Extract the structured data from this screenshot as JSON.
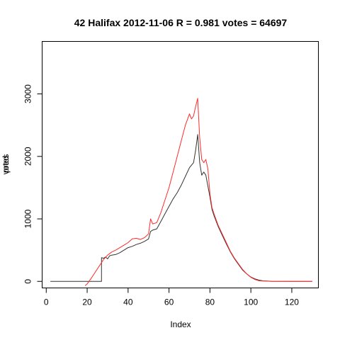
{
  "chart_data": {
    "type": "line",
    "title": "42 Halifax 2012-11-06 R = 0.981 votes = 64697",
    "xlabel": "Index",
    "ylabel_overlap": [
      "votes",
      "pred"
    ],
    "xlim": [
      -2,
      133
    ],
    "ylim": [
      -105,
      3840
    ],
    "x_ticks": [
      0,
      20,
      40,
      60,
      80,
      100,
      120
    ],
    "y_ticks": [
      0,
      1000,
      2000,
      3000
    ],
    "grid": false,
    "legend": "none",
    "series": [
      {
        "color": "#333333",
        "points": [
          [
            2,
            0
          ],
          [
            10,
            0
          ],
          [
            20,
            0
          ],
          [
            26,
            0
          ],
          [
            27,
            0
          ],
          [
            27,
            380
          ],
          [
            28,
            370
          ],
          [
            29,
            390
          ],
          [
            30,
            360
          ],
          [
            31,
            410
          ],
          [
            32,
            420
          ],
          [
            34,
            430
          ],
          [
            36,
            460
          ],
          [
            38,
            500
          ],
          [
            40,
            540
          ],
          [
            42,
            560
          ],
          [
            44,
            590
          ],
          [
            46,
            610
          ],
          [
            48,
            640
          ],
          [
            50,
            680
          ],
          [
            51,
            800
          ],
          [
            52,
            820
          ],
          [
            54,
            840
          ],
          [
            56,
            960
          ],
          [
            58,
            1080
          ],
          [
            60,
            1200
          ],
          [
            62,
            1320
          ],
          [
            64,
            1420
          ],
          [
            66,
            1540
          ],
          [
            68,
            1680
          ],
          [
            70,
            1820
          ],
          [
            72,
            1900
          ],
          [
            73,
            2100
          ],
          [
            74,
            2350
          ],
          [
            75,
            1900
          ],
          [
            76,
            1700
          ],
          [
            77,
            1750
          ],
          [
            78,
            1700
          ],
          [
            80,
            1350
          ],
          [
            81,
            1150
          ],
          [
            82,
            1050
          ],
          [
            84,
            880
          ],
          [
            86,
            740
          ],
          [
            88,
            600
          ],
          [
            90,
            470
          ],
          [
            92,
            360
          ],
          [
            94,
            270
          ],
          [
            96,
            180
          ],
          [
            98,
            120
          ],
          [
            100,
            70
          ],
          [
            102,
            40
          ],
          [
            104,
            20
          ],
          [
            106,
            8
          ],
          [
            110,
            2
          ],
          [
            120,
            0
          ],
          [
            130,
            0
          ]
        ]
      },
      {
        "color": "#ff2b2b",
        "points": [
          [
            19,
            -70
          ],
          [
            20,
            -40
          ],
          [
            22,
            50
          ],
          [
            24,
            150
          ],
          [
            26,
            250
          ],
          [
            28,
            350
          ],
          [
            30,
            420
          ],
          [
            32,
            470
          ],
          [
            34,
            500
          ],
          [
            36,
            540
          ],
          [
            38,
            580
          ],
          [
            40,
            620
          ],
          [
            42,
            680
          ],
          [
            44,
            690
          ],
          [
            46,
            670
          ],
          [
            48,
            700
          ],
          [
            50,
            760
          ],
          [
            51,
            1000
          ],
          [
            52,
            920
          ],
          [
            54,
            940
          ],
          [
            56,
            1100
          ],
          [
            58,
            1300
          ],
          [
            60,
            1500
          ],
          [
            62,
            1750
          ],
          [
            64,
            2000
          ],
          [
            66,
            2250
          ],
          [
            68,
            2500
          ],
          [
            70,
            2680
          ],
          [
            71,
            2600
          ],
          [
            72,
            2650
          ],
          [
            73,
            2800
          ],
          [
            74,
            2930
          ],
          [
            75,
            2300
          ],
          [
            76,
            1950
          ],
          [
            77,
            1900
          ],
          [
            78,
            1950
          ],
          [
            79,
            1800
          ],
          [
            80,
            1400
          ],
          [
            81,
            1180
          ],
          [
            82,
            1080
          ],
          [
            84,
            900
          ],
          [
            86,
            760
          ],
          [
            88,
            620
          ],
          [
            90,
            480
          ],
          [
            92,
            370
          ],
          [
            94,
            280
          ],
          [
            96,
            190
          ],
          [
            98,
            120
          ],
          [
            100,
            65
          ],
          [
            102,
            30
          ],
          [
            104,
            10
          ],
          [
            106,
            5
          ],
          [
            110,
            0
          ],
          [
            120,
            0
          ],
          [
            130,
            0
          ]
        ]
      }
    ]
  }
}
